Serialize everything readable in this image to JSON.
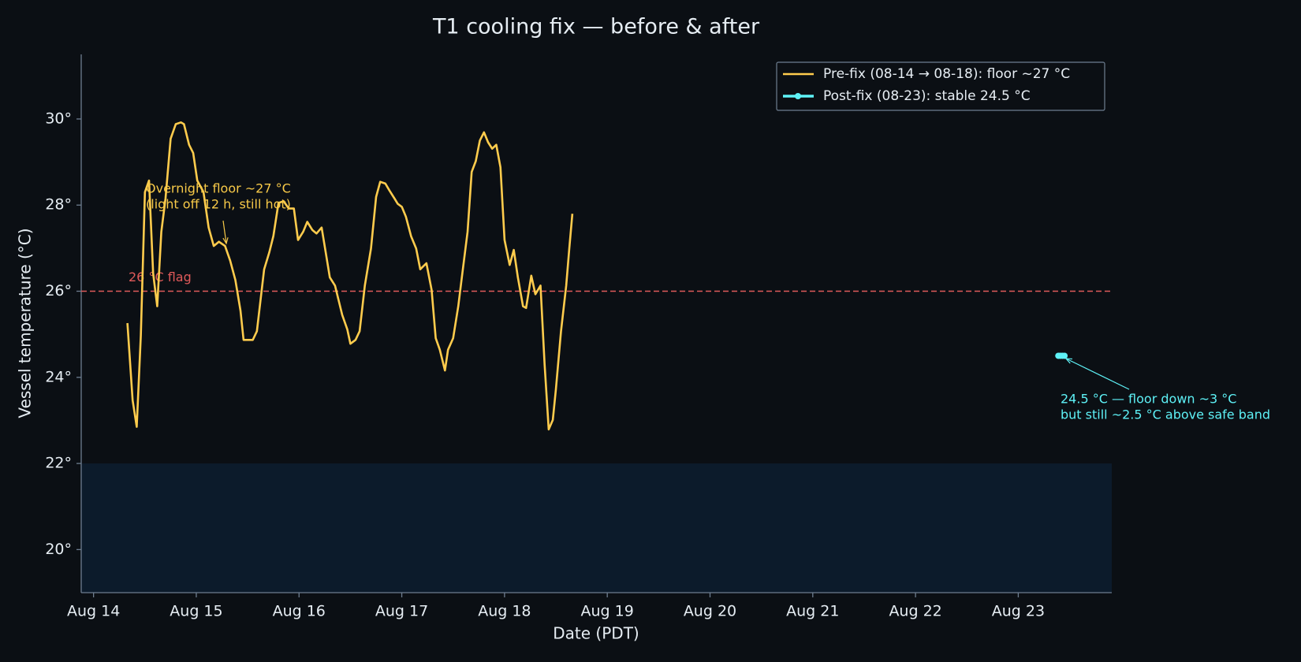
{
  "chart_data": {
    "type": "line",
    "title": "T1 cooling fix — before & after",
    "x_label": "Date (PDT)",
    "y_label": "Vessel temperature (°C)",
    "xlim": [
      13.88,
      23.91
    ],
    "xticks": [
      {
        "value": 14,
        "label": "Aug 14"
      },
      {
        "value": 15,
        "label": "Aug 15"
      },
      {
        "value": 16,
        "label": "Aug 16"
      },
      {
        "value": 17,
        "label": "Aug 17"
      },
      {
        "value": 18,
        "label": "Aug 18"
      },
      {
        "value": 19,
        "label": "Aug 19"
      },
      {
        "value": 20,
        "label": "Aug 20"
      },
      {
        "value": 21,
        "label": "Aug 21"
      },
      {
        "value": 22,
        "label": "Aug 22"
      },
      {
        "value": 23,
        "label": "Aug 23"
      }
    ],
    "ylim": [
      19,
      31.5
    ],
    "yticks": [
      {
        "value": 20,
        "label": "20°"
      },
      {
        "value": 22,
        "label": "22°"
      },
      {
        "value": 24,
        "label": "24°"
      },
      {
        "value": 26,
        "label": "26°"
      },
      {
        "value": 28,
        "label": "28°"
      },
      {
        "value": 30,
        "label": "30°"
      }
    ],
    "grid": false,
    "legend": "upper right",
    "safe_band": [
      19,
      22
    ],
    "safe_band_color": "#0c1b2b",
    "threshold": {
      "value": 26,
      "label": "26 °C flag",
      "color": "#e05a5a"
    },
    "series": [
      {
        "name": "Pre-fix (08-14 → 08-18): floor ~27 °C",
        "color": "#ffcc4d",
        "marker": false,
        "x": [
          14.33,
          14.38,
          14.42,
          14.46,
          14.5,
          14.54,
          14.58,
          14.62,
          14.66,
          14.7,
          14.75,
          14.8,
          14.85,
          14.88,
          14.93,
          14.97,
          15.01,
          15.07,
          15.12,
          15.17,
          15.22,
          15.28,
          15.33,
          15.38,
          15.43,
          15.46,
          15.55,
          15.59,
          15.66,
          15.71,
          15.75,
          15.8,
          15.85,
          15.9,
          15.95,
          15.99,
          16.04,
          16.08,
          16.13,
          16.17,
          16.22,
          16.26,
          16.3,
          16.35,
          16.42,
          16.47,
          16.5,
          16.55,
          16.59,
          16.64,
          16.7,
          16.75,
          16.79,
          16.84,
          16.88,
          16.93,
          16.96,
          17.0,
          17.04,
          17.09,
          17.14,
          17.18,
          17.24,
          17.29,
          17.33,
          17.37,
          17.42,
          17.45,
          17.5,
          17.55,
          17.59,
          17.64,
          17.68,
          17.72,
          17.76,
          17.8,
          17.84,
          17.88,
          17.92,
          17.96,
          18.0,
          18.05,
          18.09,
          18.13,
          18.18,
          18.21,
          18.26,
          18.3,
          18.35,
          18.39,
          18.43,
          18.47,
          18.5,
          18.55,
          18.6,
          18.63,
          18.66
        ],
        "values": [
          25.26,
          23.47,
          22.85,
          24.97,
          28.3,
          28.57,
          26.42,
          25.65,
          27.38,
          28.15,
          29.54,
          29.88,
          29.92,
          29.88,
          29.4,
          29.21,
          28.57,
          28.3,
          27.48,
          27.05,
          27.15,
          27.05,
          26.71,
          26.26,
          25.55,
          24.87,
          24.87,
          25.07,
          26.51,
          26.9,
          27.28,
          28.05,
          28.09,
          27.92,
          27.92,
          27.19,
          27.38,
          27.61,
          27.42,
          27.34,
          27.48,
          26.9,
          26.32,
          26.13,
          25.45,
          25.11,
          24.78,
          24.87,
          25.07,
          26.13,
          26.99,
          28.19,
          28.54,
          28.5,
          28.34,
          28.15,
          28.03,
          27.96,
          27.73,
          27.28,
          26.99,
          26.51,
          26.65,
          26.03,
          24.91,
          24.64,
          24.16,
          24.64,
          24.91,
          25.65,
          26.42,
          27.38,
          28.77,
          29.02,
          29.5,
          29.69,
          29.46,
          29.31,
          29.4,
          28.88,
          27.19,
          26.61,
          26.96,
          26.32,
          25.65,
          25.61,
          26.36,
          25.93,
          26.13,
          24.3,
          22.79,
          23.01,
          23.72,
          25.07,
          26.13,
          26.99,
          27.8
        ]
      },
      {
        "name": "Post-fix (08-23): stable 24.5 °C",
        "color": "#5ef2f7",
        "marker": true,
        "x": [
          23.39,
          23.41,
          23.43,
          23.45
        ],
        "values": [
          24.5,
          24.5,
          24.5,
          24.5
        ]
      }
    ],
    "annotations": [
      {
        "lines": [
          "Overnight floor ~27 °C",
          "(light off 12 h, still hot)"
        ],
        "color": "#f7c948"
      },
      {
        "lines": [
          "24.5 °C — floor down ~3 °C",
          "but still ~2.5 °C above safe band"
        ],
        "color": "#5ef2f7"
      }
    ]
  }
}
